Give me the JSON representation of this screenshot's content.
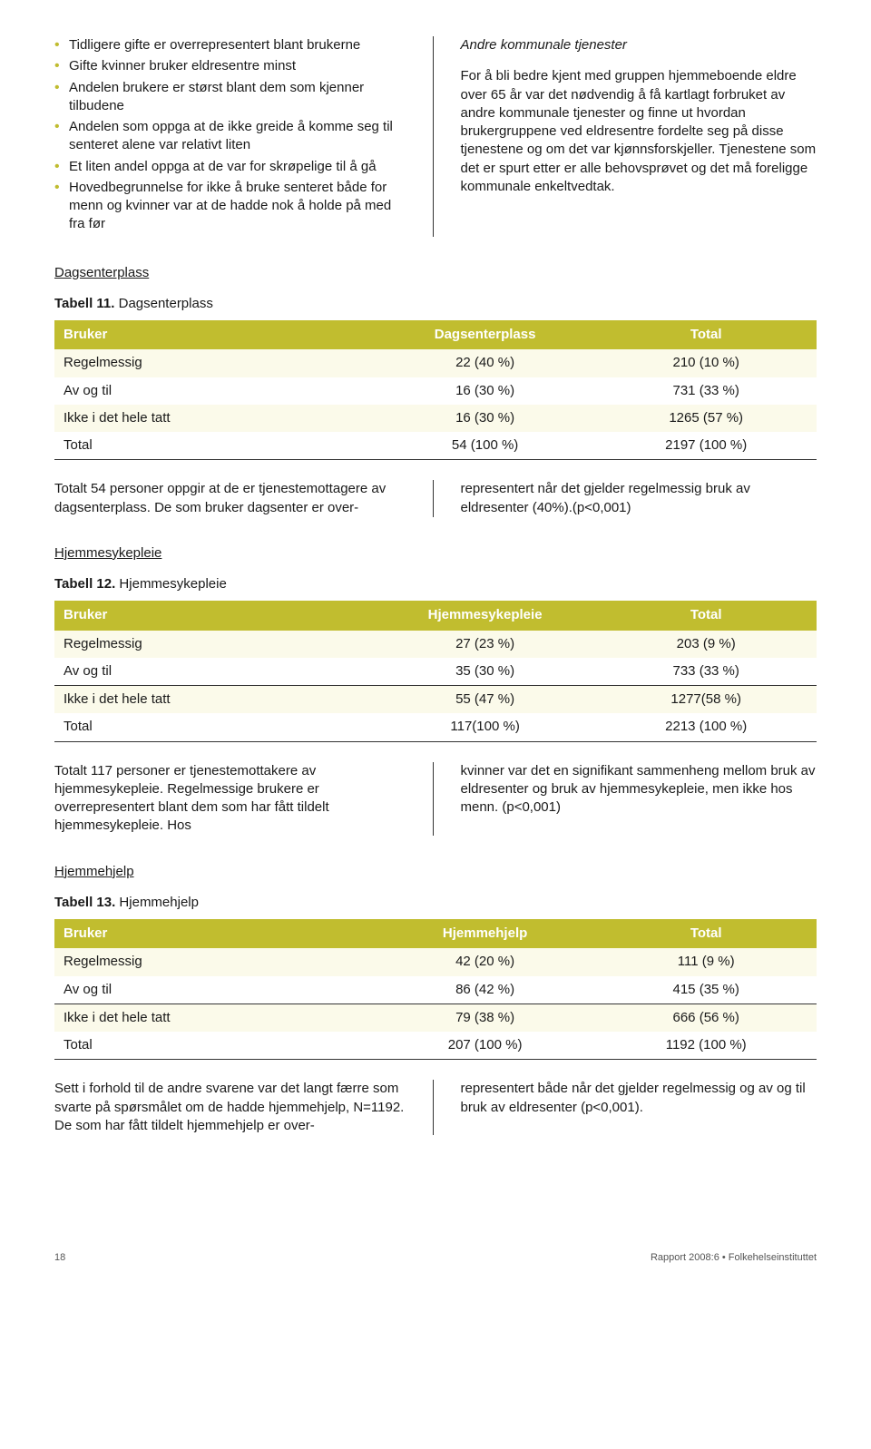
{
  "bullets": [
    "Tidligere gifte er overrepresentert blant brukerne",
    "Gifte kvinner bruker eldresentre minst",
    "Andelen brukere er størst blant dem som kjenner tilbudene",
    "Andelen som oppga at de ikke greide å komme seg til senteret alene var relativt liten",
    "Et liten andel oppga at de var for skrøpelige til å gå",
    "Hovedbegrunnelse for ikke å bruke senteret både for menn og kvinner var at de hadde nok å holde på med fra før"
  ],
  "rightcol": {
    "heading": "Andre kommunale tjenester",
    "body": "For å bli bedre kjent med gruppen hjemmeboende eldre over 65 år var det nødvendig å få kartlagt forbruket av andre kommunale tjenester og finne ut hvordan brukergruppene ved eldresentre fordelte seg på disse tjenestene og om det var kjønnsforskjeller. Tjenestene som det er spurt etter er alle behovsprøvet og det må foreligge kommunale enkeltvedtak."
  },
  "sections": [
    {
      "heading": "Dagsenterplass",
      "table_label_bold": "Tabell 11.",
      "table_label_rest": " Dagsenterplass",
      "columns": [
        "Bruker",
        "Dagsenterplass",
        "Total"
      ],
      "rows": [
        {
          "cells": [
            "Regelmessig",
            "22 (40 %)",
            "210 (10 %)"
          ],
          "shade": true,
          "line": false
        },
        {
          "cells": [
            "Av og til",
            "16 (30 %)",
            "731 (33 %)"
          ],
          "shade": false,
          "line": false
        },
        {
          "cells": [
            "Ikke i det hele tatt",
            "16 (30 %)",
            "1265 (57 %)"
          ],
          "shade": true,
          "line": false
        },
        {
          "cells": [
            "Total",
            "54 (100 %)",
            "2197 (100 %)"
          ],
          "shade": false,
          "line": true
        }
      ],
      "para_left": "Totalt 54 personer oppgir at de er tjenestemottagere av dagsenterplass. De som bruker dagsenter er over-",
      "para_right": "representert når det gjelder regelmessig bruk av eldresenter (40%).(p<0,001)"
    },
    {
      "heading": "Hjemmesykepleie",
      "table_label_bold": "Tabell 12.",
      "table_label_rest": " Hjemmesykepleie",
      "columns": [
        "Bruker",
        "Hjemmesykepleie",
        "Total"
      ],
      "rows": [
        {
          "cells": [
            "Regelmessig",
            "27 (23 %)",
            "203 (9 %)"
          ],
          "shade": true,
          "line": false
        },
        {
          "cells": [
            "Av og til",
            "35 (30 %)",
            "733 (33 %)"
          ],
          "shade": false,
          "line": true
        },
        {
          "cells": [
            "Ikke i det hele tatt",
            "55 (47 %)",
            "1277(58 %)"
          ],
          "shade": true,
          "line": false
        },
        {
          "cells": [
            "Total",
            "117(100 %)",
            "2213 (100 %)"
          ],
          "shade": false,
          "line": true
        }
      ],
      "para_left": "Totalt 117 personer er tjenestemottakere av hjemmesykepleie. Regelmessige brukere er overrepresentert blant dem som har fått tildelt hjemmesykepleie. Hos",
      "para_right": "kvinner var det en signifikant sammenheng mellom bruk av eldresenter og bruk av hjemmesykepleie, men ikke hos menn. (p<0,001)"
    },
    {
      "heading": "Hjemmehjelp",
      "table_label_bold": "Tabell 13.",
      "table_label_rest": " Hjemmehjelp",
      "columns": [
        "Bruker",
        "Hjemmehjelp",
        "Total"
      ],
      "rows": [
        {
          "cells": [
            "Regelmessig",
            "42 (20 %)",
            "111 (9 %)"
          ],
          "shade": true,
          "line": false
        },
        {
          "cells": [
            "Av og til",
            "86 (42 %)",
            "415 (35 %)"
          ],
          "shade": false,
          "line": true
        },
        {
          "cells": [
            "Ikke i det hele tatt",
            "79 (38 %)",
            "666 (56 %)"
          ],
          "shade": true,
          "line": false
        },
        {
          "cells": [
            "Total",
            "207 (100 %)",
            "1192 (100 %)"
          ],
          "shade": false,
          "line": true
        }
      ],
      "para_left": "Sett i forhold til de andre svarene var det langt færre som svarte på spørsmålet om de hadde hjemmehjelp, N=1192. De som har fått tildelt hjemmehjelp er over-",
      "para_right": "representert både når det gjelder regelmessig og av og til bruk av eldresenter (p<0,001)."
    }
  ],
  "footer": {
    "page": "18",
    "right": "Rapport 2008:6 • Folkehelseinstituttet"
  },
  "colors": {
    "header_bg": "#c1bd2f",
    "header_text": "#ffffff",
    "shade_bg": "#fbfaea",
    "bullet": "#c0bc2f",
    "text": "#1a1a1a",
    "rule": "#333333"
  }
}
